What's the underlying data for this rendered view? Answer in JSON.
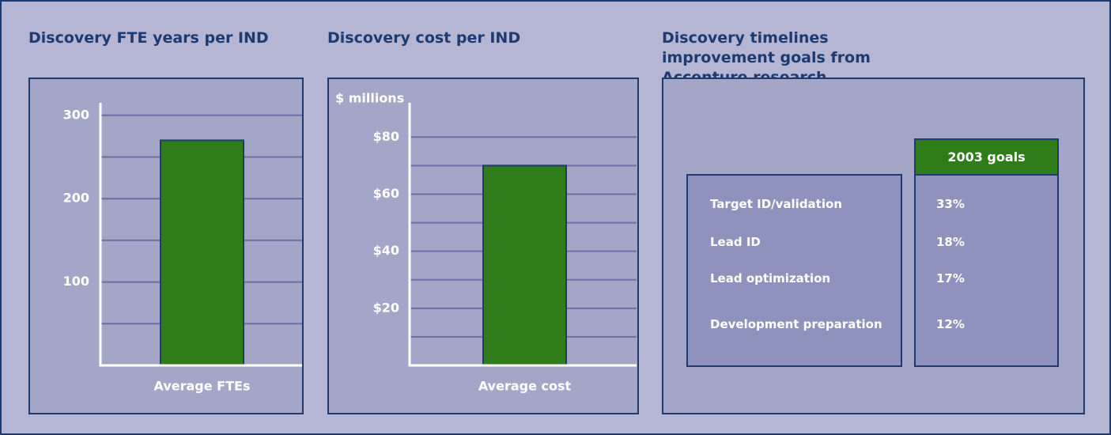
{
  "chart_data": [
    {
      "type": "bar",
      "title": "Discovery FTE years per IND",
      "categories": [
        "Average FTEs"
      ],
      "values": [
        270
      ],
      "color": "#2e7d1a",
      "ylim": [
        0,
        315
      ],
      "yticks": [
        100,
        200,
        300
      ],
      "minor_yticks": [
        50,
        150,
        250
      ],
      "grid": true
    },
    {
      "type": "bar",
      "title": "Discovery cost per IND",
      "y_label": "$ millions",
      "categories": [
        "Average cost"
      ],
      "values": [
        70
      ],
      "color": "#2e7d1a",
      "ylim": [
        0,
        92
      ],
      "yticks": [
        {
          "value": 20,
          "label": "$20"
        },
        {
          "value": 40,
          "label": "$40"
        },
        {
          "value": 60,
          "label": "$60"
        },
        {
          "value": 80,
          "label": "$80"
        }
      ],
      "minor_yticks": [
        10,
        30,
        50,
        70
      ],
      "grid": true
    }
  ],
  "table": {
    "title": "Discovery timelines improvement goals from Accenture research",
    "header": "2003 goals",
    "rows": [
      [
        "Target ID/validation",
        "33%"
      ],
      [
        "Lead ID",
        "18%"
      ],
      [
        "Lead optimization",
        "17%"
      ],
      [
        "Development preparation",
        "12%"
      ]
    ]
  }
}
